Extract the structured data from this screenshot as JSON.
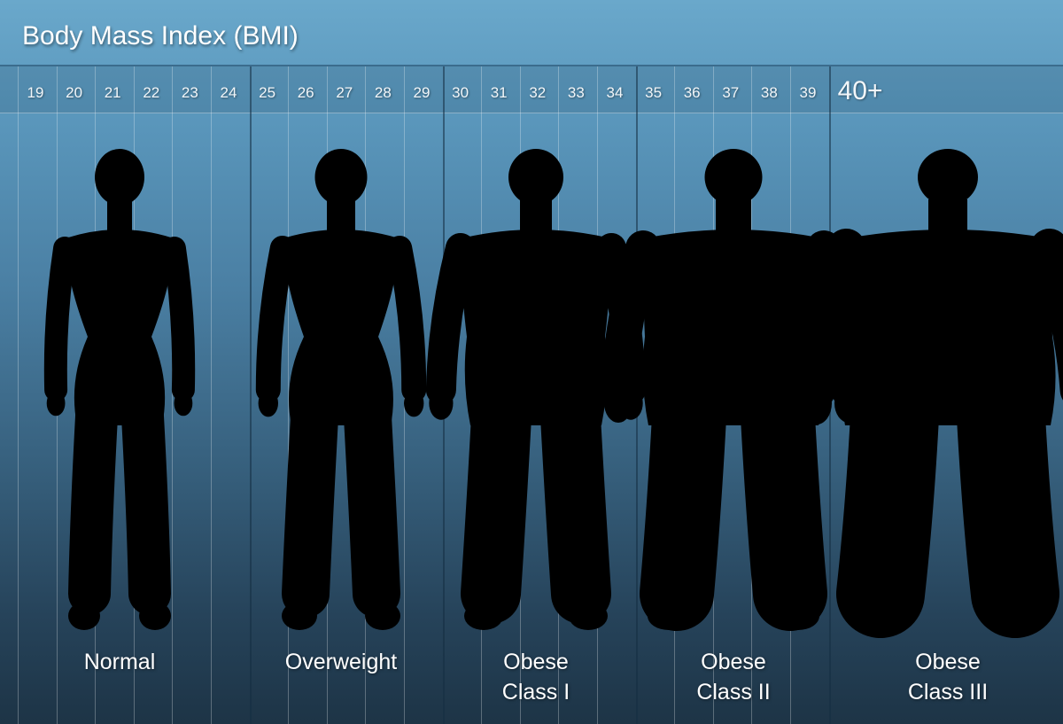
{
  "title": "Body Mass Index (BMI)",
  "bmi_ticks": [
    "19",
    "20",
    "21",
    "22",
    "23",
    "24",
    "25",
    "26",
    "27",
    "28",
    "29",
    "30",
    "31",
    "32",
    "33",
    "34",
    "35",
    "36",
    "37",
    "38",
    "39",
    "40+"
  ],
  "categories": [
    {
      "line1": "Normal",
      "line2": "",
      "range": "19–24"
    },
    {
      "line1": "Overweight",
      "line2": "",
      "range": "25–29"
    },
    {
      "line1": "Obese",
      "line2": "Class I",
      "range": "30–34"
    },
    {
      "line1": "Obese",
      "line2": "Class II",
      "range": "35–39"
    },
    {
      "line1": "Obese",
      "line2": "Class III",
      "range": "40+"
    }
  ],
  "colors": {
    "background_top": "#6aa8cb",
    "background_bottom": "#1d3446",
    "silhouette": "#000000",
    "text": "#ffffff"
  }
}
